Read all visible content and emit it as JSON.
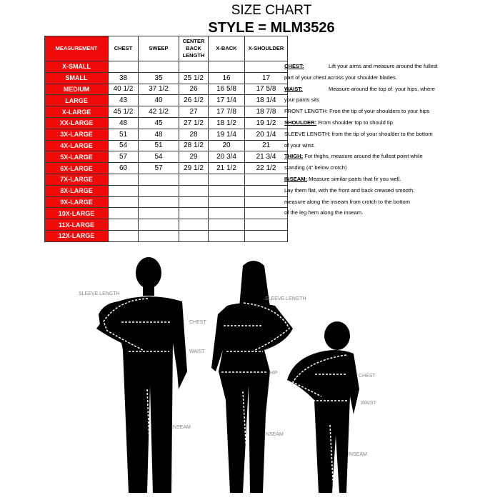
{
  "title": "SIZE CHART",
  "style_line": "STYLE = MLM3526",
  "table": {
    "headers": [
      "MEASUREMENT",
      "CHEST",
      "SWEEP",
      "CENTER BACK LENGTH",
      "X-BACK",
      "X-SHOULDER"
    ],
    "rows": [
      [
        "X-SMALL",
        "",
        "",
        "",
        "",
        ""
      ],
      [
        "SMALL",
        "38",
        "35",
        "25 1/2",
        "16",
        "17"
      ],
      [
        "MEDIUM",
        "40 1/2",
        "37 1/2",
        "26",
        "16 5/8",
        "17 5/8"
      ],
      [
        "LARGE",
        "43",
        "40",
        "26 1/2",
        "17 1/4",
        "18 1/4"
      ],
      [
        "X-LARGE",
        "45 1/2",
        "42 1/2",
        "27",
        "17 7/8",
        "18 7/8"
      ],
      [
        "XX-LARGE",
        "48",
        "45",
        "27 1/2",
        "18 1/2",
        "19 1/2"
      ],
      [
        "3X-LARGE",
        "51",
        "48",
        "28",
        "19 1/4",
        "20 1/4"
      ],
      [
        "4X-LARGE",
        "54",
        "51",
        "28 1/2",
        "20",
        "21"
      ],
      [
        "5X-LARGE",
        "57",
        "54",
        "29",
        "20 3/4",
        "21 3/4"
      ],
      [
        "6X-LARGE",
        "60",
        "57",
        "29 1/2",
        "21 1/2",
        "22 1/2"
      ],
      [
        "7X-LARGE",
        "",
        "",
        "",
        "",
        ""
      ],
      [
        "8X-LARGE",
        "",
        "",
        "",
        "",
        ""
      ],
      [
        "9X-LARGE",
        "",
        "",
        "",
        "",
        ""
      ],
      [
        "10X-LARGE",
        "",
        "",
        "",
        "",
        ""
      ],
      [
        "11X-LARGE",
        "",
        "",
        "",
        "",
        ""
      ],
      [
        "12X-LARGE",
        "",
        "",
        "",
        "",
        ""
      ]
    ]
  },
  "notes": [
    {
      "key": "CHEST:",
      "text": "Lift your arms and measure around the fullest",
      "pad": true
    },
    {
      "key": "",
      "text": "part of your chest across your shoulder blades."
    },
    {
      "key": "WAIST:",
      "text": "Measure around the top of  your hips, where",
      "pad": true
    },
    {
      "key": "",
      "text": "your pants sits"
    },
    {
      "key": "",
      "text": "FRONT LENGTH: Fron the tip of your shoulders to your hips"
    },
    {
      "key": "SHOULDER:",
      "text": " From shoulder top to should tip"
    },
    {
      "key": "",
      "text": "SLEEVE LENGTH: from the tip of your shoulder to the bottom"
    },
    {
      "key": "",
      "text": "of your wirst."
    },
    {
      "key": "THIGH:",
      "text": " Fot thighs, measure around the fullest point while"
    },
    {
      "key": "",
      "text": "standing (4\" below crotch)"
    },
    {
      "key": "INSEAM:",
      "text": " Measure similar pants that fir you well."
    },
    {
      "key": "",
      "text": "Lay them flat, with the front and back creased smooth."
    },
    {
      "key": "",
      "text": "measure along the inseam from crotch to the bottom"
    },
    {
      "key": "",
      "text": "of the leg hem along the inseam."
    }
  ],
  "figure_labels": {
    "man": {
      "sleeve": "SLEEVE LENGTH",
      "chest": "CHEST",
      "waist": "WAIST",
      "inseam": "INSEAM"
    },
    "woman": {
      "sleeve": "SLEEVE LENGTH",
      "hip": "HIP",
      "inseam": "INSEAM"
    },
    "child": {
      "chest": "CHEST",
      "waist": "WAIST",
      "inseam": "INSEAM"
    }
  },
  "colors": {
    "header_red": "#f00a0a"
  }
}
